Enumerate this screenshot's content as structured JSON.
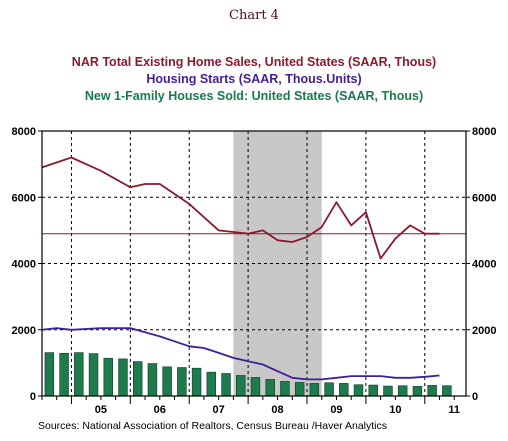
{
  "chart_data": {
    "type": "line",
    "supertitle": "Chart 4",
    "titles": [
      "NAR Total Existing Home Sales, United States (SAAR, Thous)",
      "Housing Starts (SAAR, Thous.Units)",
      "New 1-Family Houses Sold: United States (SAAR, Thous)"
    ],
    "colors": {
      "sales": "#8b1a2e",
      "starts": "#3f1f9a",
      "new": "#1a7a4a",
      "bar": "#1f7a4d",
      "recession": "#c8c8c8"
    },
    "ylim": [
      0,
      8000
    ],
    "yticks": [
      0,
      2000,
      4000,
      6000,
      8000
    ],
    "ytick_labels": [
      "0",
      "2000",
      "4000",
      "6000",
      "8000"
    ],
    "x_range": [
      2004.5,
      2011.7
    ],
    "xticks": [
      "05",
      "06",
      "07",
      "08",
      "09",
      "10",
      "11"
    ],
    "grid_years": [
      2005,
      2006,
      2007,
      2008,
      2009,
      2010,
      2011
    ],
    "recession": [
      2007.75,
      2009.25
    ],
    "reference_line": 4900,
    "series": [
      {
        "name": "NAR Total Existing Home Sales, United States (SAAR, Thous)",
        "kind": "line",
        "x": [
          2004.5,
          2005.0,
          2005.5,
          2006.0,
          2006.25,
          2006.5,
          2007.0,
          2007.5,
          2008.0,
          2008.25,
          2008.5,
          2008.75,
          2009.0,
          2009.25,
          2009.5,
          2009.75,
          2010.0,
          2010.25,
          2010.5,
          2010.75,
          2011.0,
          2011.25
        ],
        "y": [
          6900,
          7200,
          6800,
          6300,
          6400,
          6400,
          5800,
          5000,
          4900,
          5000,
          4700,
          4650,
          4800,
          5100,
          5850,
          5150,
          5550,
          4150,
          4750,
          5150,
          4900,
          4900
        ]
      },
      {
        "name": "Housing Starts (SAAR, Thous.Units)",
        "kind": "line",
        "x": [
          2004.5,
          2004.75,
          2005.0,
          2005.5,
          2006.0,
          2006.5,
          2006.75,
          2007.0,
          2007.25,
          2007.5,
          2007.75,
          2008.0,
          2008.25,
          2008.5,
          2008.75,
          2009.0,
          2009.25,
          2009.5,
          2009.75,
          2010.0,
          2010.25,
          2010.5,
          2010.75,
          2011.0,
          2011.25
        ],
        "y": [
          2000,
          2050,
          2000,
          2050,
          2050,
          1800,
          1650,
          1500,
          1450,
          1300,
          1150,
          1050,
          950,
          750,
          550,
          500,
          500,
          550,
          600,
          600,
          600,
          550,
          550,
          580,
          620
        ]
      },
      {
        "name": "New 1-Family Houses Sold: United States (SAAR, Thous)",
        "kind": "bar",
        "x": [
          2004.625,
          2004.875,
          2005.125,
          2005.375,
          2005.625,
          2005.875,
          2006.125,
          2006.375,
          2006.625,
          2006.875,
          2007.125,
          2007.375,
          2007.625,
          2007.875,
          2008.125,
          2008.375,
          2008.625,
          2008.875,
          2009.125,
          2009.375,
          2009.625,
          2009.875,
          2010.125,
          2010.375,
          2010.625,
          2010.875,
          2011.125,
          2011.375
        ],
        "y": [
          1310,
          1290,
          1310,
          1280,
          1140,
          1120,
          1040,
          980,
          880,
          860,
          840,
          720,
          680,
          620,
          560,
          500,
          440,
          410,
          380,
          400,
          380,
          340,
          330,
          300,
          310,
          290,
          320,
          310
        ]
      }
    ],
    "source": "Sources:  National Association of Realtors, Census Bureau /Haver Analytics"
  }
}
